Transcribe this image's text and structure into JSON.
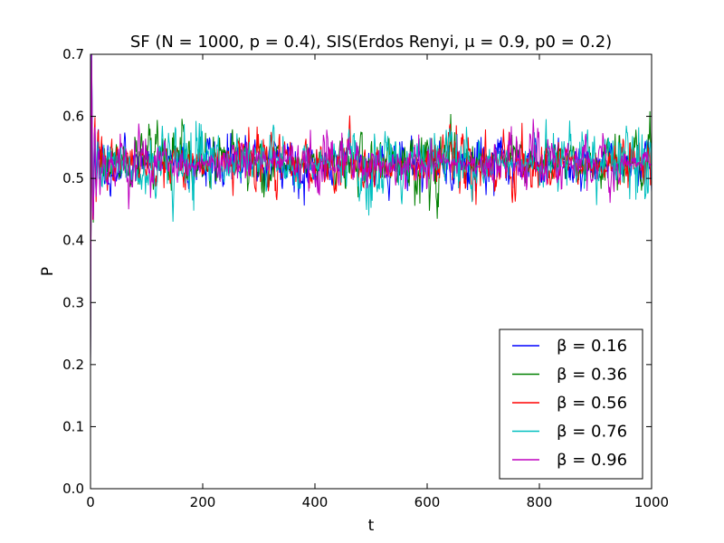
{
  "chart_data": {
    "type": "line",
    "title": "SF (N = 1000, p = 0.4), SIS(Erdos Renyi, μ = 0.9, p0 = 0.2)",
    "xlabel": "t",
    "ylabel": "P",
    "xlim": [
      0,
      1000
    ],
    "ylim": [
      0.0,
      0.7
    ],
    "xticks": [
      "0",
      "200",
      "400",
      "600",
      "800",
      "1000"
    ],
    "yticks": [
      "0.0",
      "0.1",
      "0.2",
      "0.3",
      "0.4",
      "0.5",
      "0.6",
      "0.7"
    ],
    "grid": false,
    "legend_position": "bottom-right",
    "series": [
      {
        "name": "β = 0.16",
        "color": "#0000ff",
        "start": 0.2,
        "peak": 0.7,
        "steady": 0.525,
        "amplitude": 0.022,
        "seed": 11
      },
      {
        "name": "β = 0.36",
        "color": "#008000",
        "start": 0.2,
        "peak": 0.68,
        "steady": 0.525,
        "amplitude": 0.022,
        "seed": 23
      },
      {
        "name": "β = 0.56",
        "color": "#ff0000",
        "start": 0.2,
        "peak": 0.69,
        "steady": 0.525,
        "amplitude": 0.022,
        "seed": 37
      },
      {
        "name": "β = 0.76",
        "color": "#00bfbf",
        "start": 0.2,
        "peak": 0.7,
        "steady": 0.525,
        "amplitude": 0.026,
        "seed": 41
      },
      {
        "name": "β = 0.96",
        "color": "#bf00bf",
        "start": 0.2,
        "peak": 0.7,
        "steady": 0.525,
        "amplitude": 0.02,
        "seed": 53
      }
    ]
  }
}
